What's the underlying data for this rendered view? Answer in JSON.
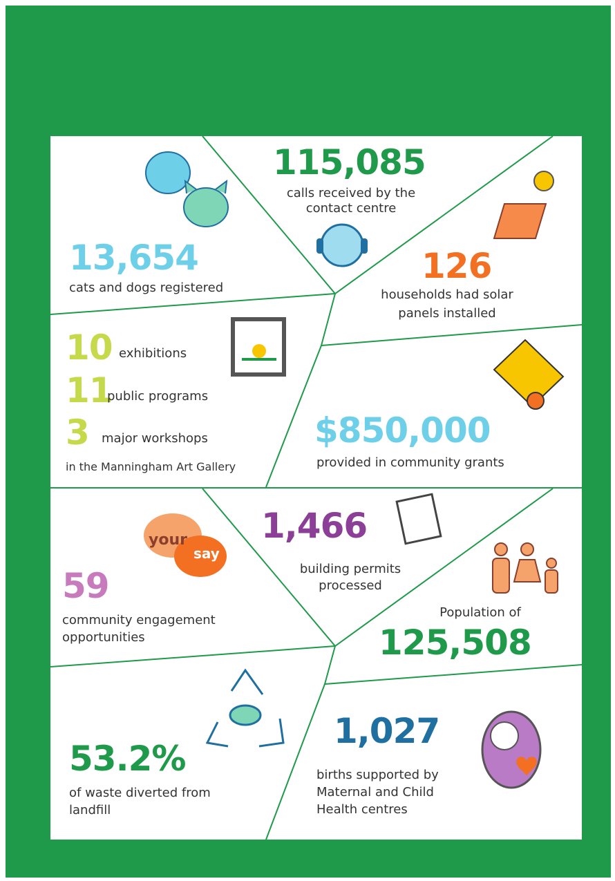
{
  "stats": [
    {
      "value": "13,654",
      "label": [
        "cats and dogs registered"
      ]
    },
    {
      "value": "115,085",
      "label": [
        "calls received by the",
        "contact centre"
      ]
    },
    {
      "value": "126",
      "label": [
        "households had solar",
        "panels installed"
      ]
    },
    {
      "value": "$850,000",
      "label": [
        "provided in community grants"
      ]
    },
    {
      "value": "59",
      "label": [
        "community engagement",
        "opportunities"
      ]
    },
    {
      "value": "1,466",
      "label": [
        "building permits",
        "processed"
      ]
    },
    {
      "value": "125,508",
      "label": [
        "Population of"
      ]
    },
    {
      "value": "53.2%",
      "label": [
        "of waste diverted from",
        "landfill"
      ]
    },
    {
      "value": "1,027",
      "label": [
        "births supported by",
        "Maternal and Child",
        "Health centres"
      ]
    }
  ],
  "gallery": {
    "items": [
      {
        "value": "10",
        "label": "exhibitions"
      },
      {
        "value": "11",
        "label": "public programs"
      },
      {
        "value": "3",
        "label": "major workshops"
      }
    ],
    "note": "in the Manningham Art Gallery"
  },
  "icon_text": [
    "your",
    "say"
  ]
}
